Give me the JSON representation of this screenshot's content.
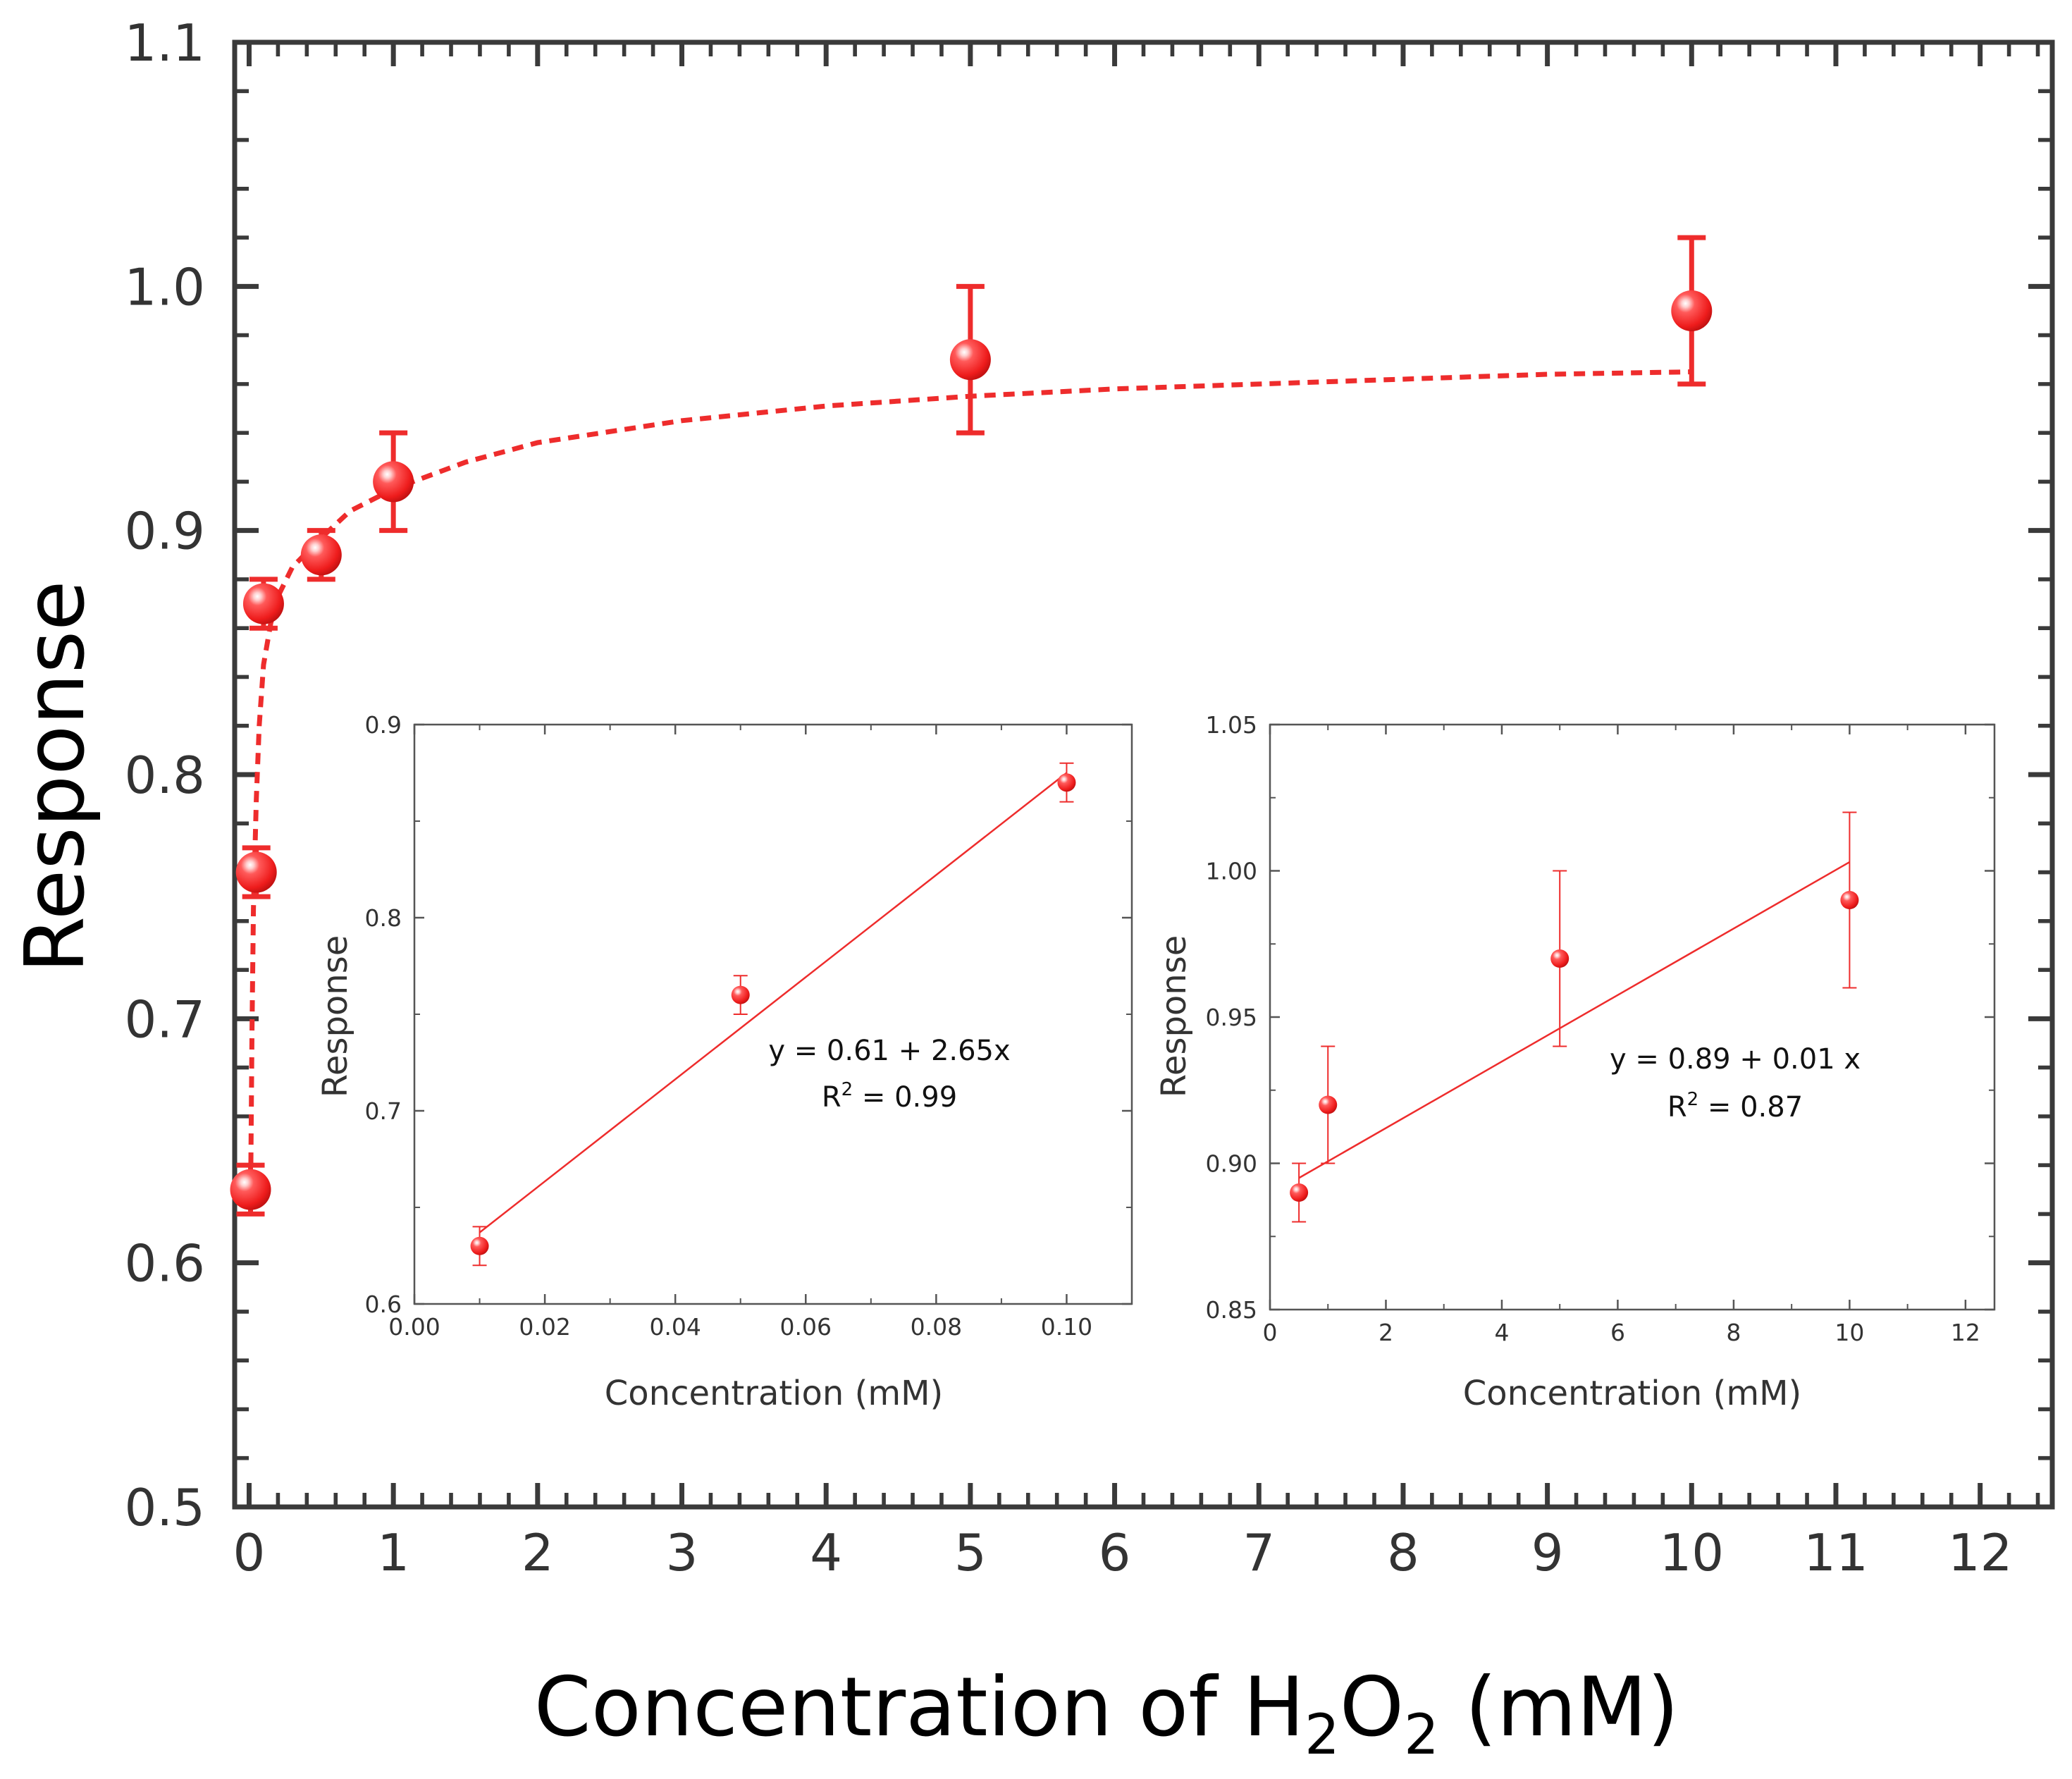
{
  "colors": {
    "series": "#ee2c2c",
    "axis": "#3a3a3a",
    "inset_axis": "#555555",
    "text": "#333333"
  },
  "chart_data": [
    {
      "id": "main",
      "type": "scatter",
      "title": "",
      "xlabel_parts": {
        "prefix": "Concentration of H",
        "sub1": "2",
        "mid": "O",
        "sub2": "2",
        "suffix": " (mM)"
      },
      "ylabel": "Response",
      "xlim": [
        -0.1,
        12.5
      ],
      "ylim": [
        0.5,
        1.1
      ],
      "x_ticks": [
        0,
        1,
        2,
        3,
        4,
        5,
        6,
        7,
        8,
        9,
        10,
        11,
        12
      ],
      "x_tick_labels": [
        "0",
        "1",
        "2",
        "3",
        "4",
        "5",
        "6",
        "7",
        "8",
        "9",
        "10",
        "11",
        "12"
      ],
      "y_ticks": [
        0.5,
        0.6,
        0.7,
        0.8,
        0.9,
        1.0,
        1.1
      ],
      "y_tick_labels": [
        "0.5",
        "0.6",
        "0.7",
        "0.8",
        "0.9",
        "1.0",
        "1.1"
      ],
      "points": [
        {
          "x": 0.01,
          "y": 0.63,
          "err": 0.01
        },
        {
          "x": 0.05,
          "y": 0.76,
          "err": 0.01
        },
        {
          "x": 0.1,
          "y": 0.87,
          "err": 0.01
        },
        {
          "x": 0.5,
          "y": 0.89,
          "err": 0.01
        },
        {
          "x": 1,
          "y": 0.92,
          "err": 0.02
        },
        {
          "x": 5,
          "y": 0.97,
          "err": 0.03
        },
        {
          "x": 10,
          "y": 0.99,
          "err": 0.03
        }
      ],
      "fit_curve": {
        "style": "dashed",
        "x": [
          0.01,
          0.02,
          0.03,
          0.05,
          0.07,
          0.1,
          0.15,
          0.2,
          0.3,
          0.5,
          0.7,
          1,
          1.5,
          2,
          3,
          4,
          5,
          6,
          7,
          8,
          9,
          10
        ],
        "y": [
          0.625,
          0.695,
          0.745,
          0.79,
          0.82,
          0.845,
          0.862,
          0.873,
          0.885,
          0.897,
          0.908,
          0.917,
          0.928,
          0.936,
          0.945,
          0.951,
          0.955,
          0.958,
          0.96,
          0.962,
          0.964,
          0.965
        ]
      }
    },
    {
      "id": "inset_left",
      "type": "scatter",
      "xlabel": "Concentration (mM)",
      "ylabel": "Response",
      "xlim": [
        0,
        0.11
      ],
      "ylim": [
        0.6,
        0.9
      ],
      "x_ticks": [
        0,
        0.02,
        0.04,
        0.06,
        0.08,
        0.1
      ],
      "x_tick_labels": [
        "0.00",
        "0.02",
        "0.04",
        "0.06",
        "0.08",
        "0.10"
      ],
      "y_ticks": [
        0.6,
        0.7,
        0.8,
        0.9
      ],
      "y_tick_labels": [
        "0.6",
        "0.7",
        "0.8",
        "0.9"
      ],
      "points": [
        {
          "x": 0.01,
          "y": 0.63,
          "err": 0.01
        },
        {
          "x": 0.05,
          "y": 0.76,
          "err": 0.01
        },
        {
          "x": 0.1,
          "y": 0.87,
          "err": 0.01
        }
      ],
      "fit_line": {
        "x": [
          0.01,
          0.1
        ],
        "y": [
          0.637,
          0.875
        ]
      },
      "equation": "y = 0.61 + 2.65x",
      "r2_label": "R",
      "r2_sup": "2",
      "r2_value": " = 0.99"
    },
    {
      "id": "inset_right",
      "type": "scatter",
      "xlabel": "Concentration (mM)",
      "ylabel": "Response",
      "xlim": [
        0,
        12.5
      ],
      "ylim": [
        0.85,
        1.05
      ],
      "x_ticks": [
        0,
        2,
        4,
        6,
        8,
        10,
        12
      ],
      "x_tick_labels": [
        "0",
        "2",
        "4",
        "6",
        "8",
        "10",
        "12"
      ],
      "y_ticks": [
        0.85,
        0.9,
        0.95,
        1.0,
        1.05
      ],
      "y_tick_labels": [
        "0.85",
        "0.90",
        "0.95",
        "1.00",
        "1.05"
      ],
      "points": [
        {
          "x": 0.5,
          "y": 0.89,
          "err": 0.01
        },
        {
          "x": 1,
          "y": 0.92,
          "err": 0.02
        },
        {
          "x": 5,
          "y": 0.97,
          "err": 0.03
        },
        {
          "x": 10,
          "y": 0.99,
          "err": 0.03
        }
      ],
      "fit_line": {
        "x": [
          0.5,
          10
        ],
        "y": [
          0.895,
          1.003
        ]
      },
      "equation": "y = 0.89 + 0.01 x",
      "r2_label": "R",
      "r2_sup": "2",
      "r2_value": " = 0.87"
    }
  ]
}
